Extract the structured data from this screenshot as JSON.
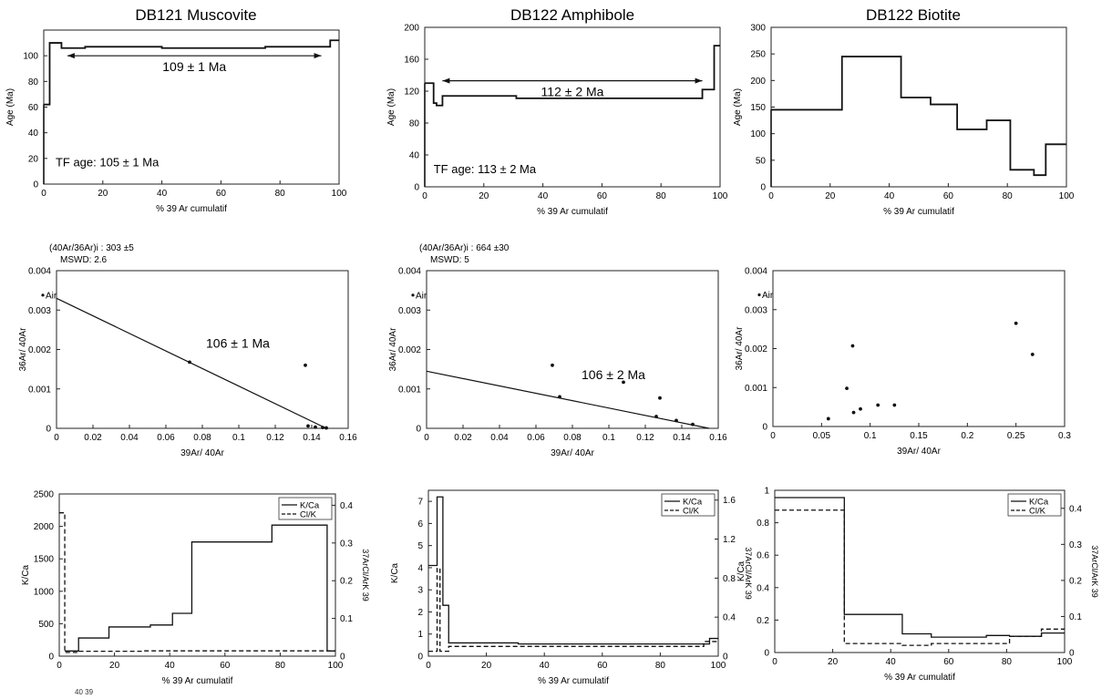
{
  "chart_data": [
    {
      "id": "p1",
      "type": "line",
      "title": "DB121 Muscovite",
      "xlabel": "% 39 Ar cumulatif",
      "ylabel": "Age (Ma)",
      "xlim": [
        0,
        100
      ],
      "ylim": [
        0,
        120
      ],
      "xticks": [
        0,
        20,
        40,
        60,
        80,
        100
      ],
      "yticks": [
        0,
        20,
        40,
        60,
        80,
        100
      ],
      "steps": [
        {
          "x0": 0,
          "x1": 2,
          "y": 62
        },
        {
          "x0": 2,
          "x1": 6,
          "y": 110
        },
        {
          "x0": 6,
          "x1": 14,
          "y": 106
        },
        {
          "x0": 14,
          "x1": 40,
          "y": 107
        },
        {
          "x0": 40,
          "x1": 75,
          "y": 106
        },
        {
          "x0": 75,
          "x1": 97,
          "y": 107
        },
        {
          "x0": 97,
          "x1": 100,
          "y": 112
        }
      ],
      "plateau": {
        "x0": 8,
        "x1": 94,
        "y": 100,
        "label": "109 ± 1 Ma"
      },
      "annotations": [
        {
          "text": "TF age: 105 ± 1 Ma",
          "x": 4,
          "y": 14
        }
      ]
    },
    {
      "id": "p2",
      "type": "line",
      "title": "DB122 Amphibole",
      "xlabel": "% 39 Ar cumulatif",
      "ylabel": "Age (Ma)",
      "xlim": [
        0,
        100
      ],
      "ylim": [
        0,
        200
      ],
      "xticks": [
        0,
        20,
        40,
        60,
        80,
        100
      ],
      "yticks": [
        0,
        40,
        80,
        120,
        160,
        200
      ],
      "steps": [
        {
          "x0": 0,
          "x1": 3,
          "y": 130
        },
        {
          "x0": 3,
          "x1": 4,
          "y": 105
        },
        {
          "x0": 4,
          "x1": 6,
          "y": 102
        },
        {
          "x0": 6,
          "x1": 31,
          "y": 114
        },
        {
          "x0": 31,
          "x1": 94,
          "y": 111
        },
        {
          "x0": 94,
          "x1": 98,
          "y": 122
        },
        {
          "x0": 98,
          "x1": 100,
          "y": 177
        }
      ],
      "plateau": {
        "x0": 6,
        "x1": 94,
        "y": 133,
        "label": "112 ± 2 Ma"
      },
      "annotations": [
        {
          "text": "TF age: 113 ± 2 Ma",
          "x": 3,
          "y": 17
        }
      ]
    },
    {
      "id": "p3",
      "type": "line",
      "title": "DB122 Biotite",
      "xlabel": "% 39 Ar cumulatif",
      "ylabel": "Age (Ma)",
      "xlim": [
        0,
        100
      ],
      "ylim": [
        0,
        300
      ],
      "xticks": [
        0,
        20,
        40,
        60,
        80,
        100
      ],
      "yticks": [
        0,
        50,
        100,
        150,
        200,
        250,
        300
      ],
      "steps": [
        {
          "x0": 0,
          "x1": 24,
          "y": 145
        },
        {
          "x0": 24,
          "x1": 44,
          "y": 245
        },
        {
          "x0": 44,
          "x1": 54,
          "y": 168
        },
        {
          "x0": 54,
          "x1": 63,
          "y": 155
        },
        {
          "x0": 63,
          "x1": 73,
          "y": 108
        },
        {
          "x0": 73,
          "x1": 81,
          "y": 125
        },
        {
          "x0": 81,
          "x1": 89,
          "y": 32
        },
        {
          "x0": 89,
          "x1": 93,
          "y": 22
        },
        {
          "x0": 93,
          "x1": 100,
          "y": 80
        }
      ],
      "annotations": []
    },
    {
      "id": "p4",
      "type": "scatter",
      "xlabel": "39Ar/ 40Ar",
      "ylabel": "36Ar/ 40Ar",
      "header": [
        "(40Ar/36Ar)i : 303 ±5",
        "MSWD: 2.6"
      ],
      "xlim": [
        0,
        0.16
      ],
      "ylim": [
        0,
        0.004
      ],
      "xticks": [
        "0",
        "0.02",
        "0.04",
        "0.06",
        "0.08",
        "0.1",
        "0.12",
        "0.14",
        "0.16"
      ],
      "yticks": [
        "0",
        "0.001",
        "0.002",
        "0.003",
        "0.004"
      ],
      "points": [
        {
          "x": 0.073,
          "y": 0.00168
        },
        {
          "x": 0.1365,
          "y": 0.0016
        },
        {
          "x": 0.138,
          "y": 6e-05
        },
        {
          "x": 0.142,
          "y": 3e-05
        },
        {
          "x": 0.146,
          "y": 2e-05
        },
        {
          "x": 0.148,
          "y": 1e-05
        }
      ],
      "air": {
        "x": 0,
        "y": 0.00338,
        "label": "Air"
      },
      "isochron": {
        "x0": 0,
        "y0": 0.0033,
        "x1": 0.148,
        "y1": 0
      },
      "label": {
        "text": "106 ± 1 Ma",
        "x": 0.082,
        "y": 0.00205
      }
    },
    {
      "id": "p5",
      "type": "scatter",
      "xlabel": "39Ar/ 40Ar",
      "ylabel": "36Ar/ 40Ar",
      "header": [
        "(40Ar/36Ar)i : 664 ±30",
        "MSWD: 5"
      ],
      "xlim": [
        0,
        0.16
      ],
      "ylim": [
        0,
        0.004
      ],
      "xticks": [
        "0",
        "0.02",
        "0.04",
        "0.06",
        "0.08",
        "0.1",
        "0.12",
        "0.14",
        "0.16"
      ],
      "yticks": [
        "0",
        "0.001",
        "0.002",
        "0.003",
        "0.004"
      ],
      "points": [
        {
          "x": 0.069,
          "y": 0.0016
        },
        {
          "x": 0.073,
          "y": 0.0008
        },
        {
          "x": 0.108,
          "y": 0.00117
        },
        {
          "x": 0.126,
          "y": 0.0003
        },
        {
          "x": 0.128,
          "y": 0.00077
        },
        {
          "x": 0.137,
          "y": 0.0002
        },
        {
          "x": 0.146,
          "y": 0.0001
        }
      ],
      "air": {
        "x": 0,
        "y": 0.00338,
        "label": "Air"
      },
      "isochron": {
        "x0": 0,
        "y0": 0.00145,
        "x1": 0.155,
        "y1": 0
      },
      "label": {
        "text": "106 ± 2 Ma",
        "x": 0.085,
        "y": 0.00125
      }
    },
    {
      "id": "p6",
      "type": "scatter",
      "xlabel": "39Ar/ 40Ar",
      "ylabel": "36Ar/ 40Ar",
      "header": [],
      "xlim": [
        0,
        0.3
      ],
      "ylim": [
        0,
        0.004
      ],
      "xticks": [
        "0",
        "0.05",
        "0.1",
        "0.15",
        "0.2",
        "0.25",
        "0.3"
      ],
      "yticks": [
        "0",
        "0.001",
        "0.002",
        "0.003",
        "0.004"
      ],
      "points": [
        {
          "x": 0.057,
          "y": 0.0002
        },
        {
          "x": 0.076,
          "y": 0.00098
        },
        {
          "x": 0.082,
          "y": 0.00207
        },
        {
          "x": 0.083,
          "y": 0.00036
        },
        {
          "x": 0.09,
          "y": 0.00045
        },
        {
          "x": 0.108,
          "y": 0.00055
        },
        {
          "x": 0.125,
          "y": 0.00055
        },
        {
          "x": 0.25,
          "y": 0.00265
        },
        {
          "x": 0.267,
          "y": 0.00185
        }
      ],
      "air": {
        "x": 0,
        "y": 0.00338,
        "label": "Air"
      }
    },
    {
      "id": "p7",
      "type": "line",
      "xlabel": "% 39 Ar cumulatif",
      "ylabel": "K/Ca",
      "ylabel_right": "37ArCl/ArK 39",
      "xlim": [
        0,
        100
      ],
      "ylim": [
        0,
        2500
      ],
      "ylim_right": [
        0,
        0.43
      ],
      "xticks": [
        0,
        20,
        40,
        60,
        80,
        100
      ],
      "yticks": [
        0,
        500,
        1000,
        1500,
        2000,
        2500
      ],
      "yticks_right": [
        0,
        0.1,
        0.2,
        0.3,
        0.4
      ],
      "legend": [
        "K/Ca",
        "Cl/K"
      ],
      "legend_position": "top-right",
      "series": [
        {
          "name": "K/Ca",
          "steps": [
            {
              "x0": 2,
              "x1": 7,
              "y": 80
            },
            {
              "x0": 7,
              "x1": 18,
              "y": 280
            },
            {
              "x0": 18,
              "x1": 33,
              "y": 450
            },
            {
              "x0": 33,
              "x1": 41,
              "y": 480
            },
            {
              "x0": 41,
              "x1": 48,
              "y": 660
            },
            {
              "x0": 48,
              "x1": 77,
              "y": 1760
            },
            {
              "x0": 77,
              "x1": 97,
              "y": 2020
            },
            {
              "x0": 97,
              "x1": 100,
              "y": 80
            }
          ]
        },
        {
          "name": "Cl/K",
          "axis": "right",
          "steps": [
            {
              "x0": 0,
              "x1": 2,
              "y": 0.38
            },
            {
              "x0": 2,
              "x1": 7,
              "y": 0.01
            },
            {
              "x0": 7,
              "x1": 30,
              "y": 0.013
            },
            {
              "x0": 30,
              "x1": 100,
              "y": 0.014
            }
          ]
        }
      ]
    },
    {
      "id": "p8",
      "type": "line",
      "xlabel": "% 39 Ar cumulatif",
      "ylabel": "K/Ca",
      "ylabel_right": "37ArCl/ArK 39",
      "xlim": [
        0,
        100
      ],
      "ylim": [
        0,
        7.5
      ],
      "ylim_right": [
        0,
        1.7
      ],
      "xticks": [
        0,
        20,
        40,
        60,
        80,
        100
      ],
      "yticks": [
        0,
        1,
        2,
        3,
        4,
        5,
        6,
        7
      ],
      "yticks_right": [
        "0",
        "0.4",
        "0.8",
        "1.2",
        "1.6"
      ],
      "legend": [
        "K/Ca",
        "Cl/K"
      ],
      "legend_position": "top-right",
      "series": [
        {
          "name": "K/Ca",
          "steps": [
            {
              "x0": 0,
              "x1": 3,
              "y": 4.1
            },
            {
              "x0": 3,
              "x1": 5,
              "y": 7.2
            },
            {
              "x0": 5,
              "x1": 7,
              "y": 2.3
            },
            {
              "x0": 7,
              "x1": 31,
              "y": 0.6
            },
            {
              "x0": 31,
              "x1": 97,
              "y": 0.55
            },
            {
              "x0": 97,
              "x1": 100,
              "y": 0.8
            }
          ]
        },
        {
          "name": "Cl/K",
          "axis": "right",
          "steps": [
            {
              "x0": 0,
              "x1": 3,
              "y": 0.05
            },
            {
              "x0": 3,
              "x1": 4,
              "y": 0.9
            },
            {
              "x0": 4,
              "x1": 7,
              "y": 0.05
            },
            {
              "x0": 7,
              "x1": 95,
              "y": 0.1
            },
            {
              "x0": 95,
              "x1": 100,
              "y": 0.15
            }
          ]
        }
      ]
    },
    {
      "id": "p9",
      "type": "line",
      "xlabel": "% 39 Ar cumulatif",
      "ylabel": "K/Ca",
      "ylabel_right": "37ArCl/ArK 39",
      "xlim": [
        0,
        100
      ],
      "ylim": [
        0,
        1
      ],
      "ylim_right": [
        0,
        0.45
      ],
      "xticks": [
        0,
        20,
        40,
        60,
        80,
        100
      ],
      "yticks": [
        "0",
        "0.2",
        "0.4",
        "0.6",
        "0.8",
        "1"
      ],
      "yticks_right": [
        "0",
        "0.1",
        "0.2",
        "0.3",
        "0.4"
      ],
      "legend": [
        "K/Ca",
        "Cl/K"
      ],
      "legend_position": "top-right",
      "series": [
        {
          "name": "K/Ca",
          "steps": [
            {
              "x0": 0,
              "x1": 24,
              "y": 0.955
            },
            {
              "x0": 24,
              "x1": 44,
              "y": 0.235
            },
            {
              "x0": 44,
              "x1": 54,
              "y": 0.115
            },
            {
              "x0": 54,
              "x1": 73,
              "y": 0.095
            },
            {
              "x0": 73,
              "x1": 81,
              "y": 0.105
            },
            {
              "x0": 81,
              "x1": 92,
              "y": 0.1
            },
            {
              "x0": 92,
              "x1": 100,
              "y": 0.12
            }
          ]
        },
        {
          "name": "Cl/K",
          "axis": "right",
          "steps": [
            {
              "x0": 0,
              "x1": 24,
              "y": 0.395
            },
            {
              "x0": 24,
              "x1": 44,
              "y": 0.025
            },
            {
              "x0": 44,
              "x1": 54,
              "y": 0.02
            },
            {
              "x0": 54,
              "x1": 81,
              "y": 0.025
            },
            {
              "x0": 81,
              "x1": 92,
              "y": 0.045
            },
            {
              "x0": 92,
              "x1": 100,
              "y": 0.065
            }
          ]
        }
      ]
    }
  ],
  "footer_fragment": "40 39"
}
